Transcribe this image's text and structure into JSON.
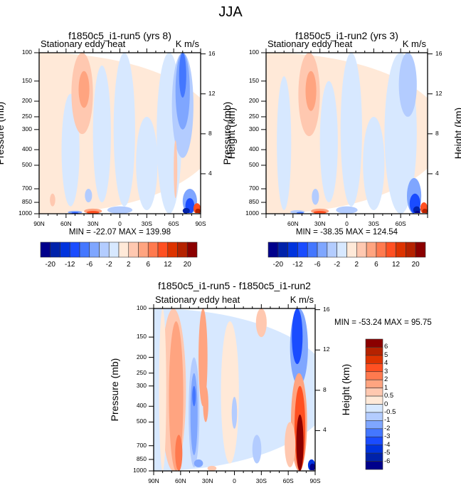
{
  "figure": {
    "title": "JJA"
  },
  "chart_data": [
    {
      "type": "heatmap",
      "id": "panel1",
      "title": "f1850c5_i1-run5 (yrs 8)",
      "left_string": "Stationary eddy heat",
      "right_string": "K m/s",
      "ylabel": "Pressure (mb)",
      "ylabel_right": "Height (km)",
      "xlabel": "",
      "x_ticks": [
        "90N",
        "60N",
        "30N",
        "0",
        "30S",
        "60S",
        "90S"
      ],
      "y_ticks": [
        "100",
        "150",
        "200",
        "250",
        "300",
        "400",
        "500",
        "700",
        "850",
        "1000"
      ],
      "y_ticks_right": [
        "16",
        "12",
        "8",
        "4"
      ],
      "xlim": [
        90,
        -90
      ],
      "ylim": [
        1000,
        100
      ],
      "min": -22.07,
      "max": 139.98,
      "stats_text": "MIN = -22.07  MAX = 139.98",
      "features": [
        {
          "lat": 40,
          "p": 150,
          "value": 6,
          "desc": "upper-tropospheric positive maximum near 40N"
        },
        {
          "lat": 30,
          "p": 1000,
          "value": 12,
          "desc": "surface positive maximum near 30N"
        },
        {
          "lat": -70,
          "p": 120,
          "value": -12,
          "desc": "upper negative core near 70S"
        },
        {
          "lat": -85,
          "p": 950,
          "value": 20,
          "desc": "near-surface positive extreme near 85S"
        },
        {
          "lat": -75,
          "p": 950,
          "value": -20,
          "desc": "near-surface negative extreme near 75S"
        }
      ]
    },
    {
      "type": "heatmap",
      "id": "panel2",
      "title": "f1850c5_i1-run2 (yrs 3)",
      "left_string": "Stationary eddy heat",
      "right_string": "K m/s",
      "ylabel": "Pressure (mb)",
      "ylabel_right": "Height (km)",
      "xlabel": "",
      "x_ticks": [
        "",
        "60N",
        "30N",
        "0",
        "30S",
        "60S",
        ""
      ],
      "y_ticks": [
        "100",
        "150",
        "200",
        "250",
        "300",
        "400",
        "500",
        "700",
        "850",
        "1000"
      ],
      "y_ticks_right": [
        "16",
        "12",
        "8",
        "4"
      ],
      "xlim": [
        90,
        -90
      ],
      "ylim": [
        1000,
        100
      ],
      "min": -38.35,
      "max": 124.54,
      "stats_text": "MIN = -38.35  MAX = 124.54",
      "features": [
        {
          "lat": 40,
          "p": 150,
          "value": 6,
          "desc": "upper-tropospheric positive maximum near 40N"
        },
        {
          "lat": 30,
          "p": 1000,
          "value": 12,
          "desc": "surface positive maximum near 30N"
        },
        {
          "lat": -70,
          "p": 150,
          "value": -4,
          "desc": "upper negative band near 70S"
        },
        {
          "lat": -85,
          "p": 950,
          "value": 20,
          "desc": "near-surface positive extreme near 85S"
        },
        {
          "lat": -75,
          "p": 950,
          "value": -20,
          "desc": "near-surface negative extreme near 75S"
        }
      ]
    },
    {
      "type": "heatmap",
      "id": "panel3",
      "title": "f1850c5_i1-run5 - f1850c5_i1-run2",
      "left_string": "Stationary eddy heat",
      "right_string": "K m/s",
      "ylabel": "Pressure (mb)",
      "ylabel_right": "Height (km)",
      "xlabel": "",
      "x_ticks": [
        "90N",
        "60N",
        "30N",
        "0",
        "30S",
        "60S",
        "90S"
      ],
      "y_ticks": [
        "100",
        "150",
        "200",
        "250",
        "300",
        "400",
        "500",
        "700",
        "850",
        "1000"
      ],
      "y_ticks_right": [
        "16",
        "12",
        "8",
        "4"
      ],
      "xlim": [
        90,
        -90
      ],
      "ylim": [
        1000,
        100
      ],
      "min": -53.24,
      "max": 95.75,
      "stats_text": "MIN = -53.24  MAX =  95.75",
      "features": [
        {
          "lat": 65,
          "p": 700,
          "value": 2,
          "desc": "positive band 60-75N through column"
        },
        {
          "lat": 45,
          "p": 300,
          "value": -3,
          "desc": "negative band near 45N"
        },
        {
          "lat": 35,
          "p": 150,
          "value": 1,
          "desc": "positive band near 35N aloft"
        },
        {
          "lat": -70,
          "p": 120,
          "value": -4,
          "desc": "upper negative core near 70S"
        },
        {
          "lat": -72,
          "p": 600,
          "value": 6,
          "desc": "strong positive column near 72S"
        },
        {
          "lat": -85,
          "p": 950,
          "value": -6,
          "desc": "near-surface negative near 85S"
        }
      ]
    }
  ],
  "colorbars": {
    "horizontal": {
      "colors": [
        "#00008b",
        "#0022aa",
        "#0033dd",
        "#1a4cff",
        "#4477ff",
        "#7fa6ff",
        "#b3ccff",
        "#d7e8ff",
        "#ffe9d8",
        "#ffc8b0",
        "#ffa480",
        "#ff7a4f",
        "#ff5022",
        "#dd3300",
        "#b52200",
        "#8b0000"
      ],
      "labels": [
        "-20",
        "",
        "-12",
        "",
        "-6",
        "",
        "-2",
        "",
        "2",
        "",
        "6",
        "",
        "12",
        "",
        "20"
      ]
    },
    "vertical": {
      "colors": [
        "#8b0000",
        "#b52200",
        "#dd3300",
        "#ff5022",
        "#ff7a4f",
        "#ffa480",
        "#ffc8b0",
        "#ffe9d8",
        "#d7e8ff",
        "#b3ccff",
        "#7fa6ff",
        "#4477ff",
        "#1a4cff",
        "#0033dd",
        "#0022aa",
        "#00008b"
      ],
      "labels": [
        "6",
        "5",
        "4",
        "3",
        "2",
        "1",
        "0.5",
        "0",
        "-0.5",
        "-1",
        "-2",
        "-3",
        "-4",
        "-5",
        "-6"
      ]
    }
  }
}
